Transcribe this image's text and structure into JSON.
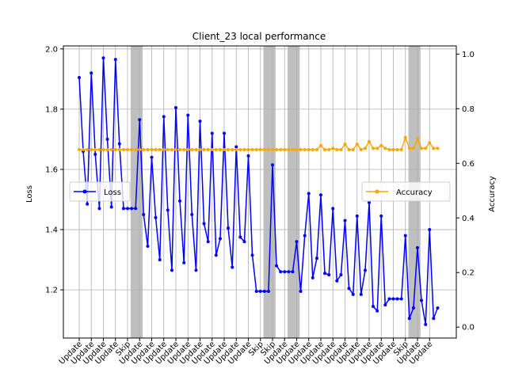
{
  "chart_data": {
    "type": "line",
    "title": "Client_23 local performance",
    "xlabel": "",
    "ylabel_left": "Loss",
    "ylabel_right": "Accuracy",
    "grid": true,
    "colors": {
      "loss": "#0000ff",
      "accuracy": "#ffa500",
      "skip_band": "#808080",
      "grid": "#b0b0b0"
    },
    "x_tick_labels": [
      "Update",
      "Update",
      "Update",
      "Update",
      "Skip",
      "Update",
      "Update",
      "Update",
      "Update",
      "Update",
      "Update",
      "Update",
      "Update",
      "Update",
      "Update",
      "Skip",
      "Skip",
      "Update",
      "Update",
      "Update",
      "Update",
      "Update",
      "Update",
      "Update",
      "Update",
      "Update",
      "Update",
      "Skip",
      "Update",
      "Update"
    ],
    "skip_rounds": [
      4,
      15,
      17,
      27
    ],
    "left_axis": {
      "ylim": [
        1.04,
        2.01
      ],
      "ticks": [
        1.2,
        1.4,
        1.6,
        1.8,
        2.0
      ],
      "tick_labels": [
        "1.2",
        "1.4",
        "1.6",
        "1.8",
        "2.0"
      ]
    },
    "right_axis": {
      "ylim": [
        -0.04,
        1.03
      ],
      "ticks": [
        0.0,
        0.2,
        0.4,
        0.6,
        0.8,
        1.0
      ],
      "tick_labels": [
        "0.0",
        "0.2",
        "0.4",
        "0.6",
        "0.8",
        "1.0"
      ]
    },
    "x": [
      0,
      0.33,
      0.67,
      1,
      1.33,
      1.67,
      2,
      2.33,
      2.67,
      3,
      3.33,
      3.67,
      4,
      4.33,
      4.67,
      5,
      5.33,
      5.67,
      6,
      6.33,
      6.67,
      7,
      7.33,
      7.67,
      8,
      8.33,
      8.67,
      9,
      9.33,
      9.67,
      10,
      10.33,
      10.67,
      11,
      11.33,
      11.67,
      12,
      12.33,
      12.67,
      13,
      13.33,
      13.67,
      14,
      14.33,
      14.67,
      15,
      15.33,
      15.67,
      16,
      16.33,
      16.67,
      17,
      17.33,
      17.67,
      18,
      18.33,
      18.67,
      19,
      19.33,
      19.67,
      20,
      20.33,
      20.67,
      21,
      21.33,
      21.67,
      22,
      22.33,
      22.67,
      23,
      23.33,
      23.67,
      24,
      24.33,
      24.67,
      25,
      25.33,
      25.67,
      26,
      26.33,
      26.67,
      27,
      27.33,
      27.67,
      28,
      28.33,
      28.67,
      29,
      29.33,
      29.67
    ],
    "series": [
      {
        "name": "Loss",
        "axis": "left",
        "values": [
          1.905,
          1.66,
          1.485,
          1.92,
          1.65,
          1.47,
          1.97,
          1.7,
          1.475,
          1.965,
          1.685,
          1.47,
          1.47,
          1.47,
          1.47,
          1.765,
          1.45,
          1.345,
          1.64,
          1.44,
          1.3,
          1.775,
          1.465,
          1.265,
          1.805,
          1.495,
          1.29,
          1.78,
          1.45,
          1.265,
          1.76,
          1.42,
          1.36,
          1.72,
          1.315,
          1.37,
          1.72,
          1.405,
          1.275,
          1.675,
          1.375,
          1.36,
          1.645,
          1.315,
          1.195,
          1.195,
          1.195,
          1.195,
          1.615,
          1.28,
          1.26,
          1.26,
          1.26,
          1.26,
          1.36,
          1.195,
          1.38,
          1.52,
          1.24,
          1.305,
          1.515,
          1.255,
          1.25,
          1.47,
          1.23,
          1.25,
          1.43,
          1.205,
          1.185,
          1.445,
          1.185,
          1.265,
          1.49,
          1.145,
          1.13,
          1.445,
          1.15,
          1.17,
          1.17,
          1.17,
          1.17,
          1.38,
          1.105,
          1.14,
          1.34,
          1.165,
          1.085,
          1.4,
          1.105,
          1.14
        ]
      },
      {
        "name": "Accuracy",
        "axis": "right",
        "values": [
          0.65,
          0.65,
          0.65,
          0.65,
          0.65,
          0.65,
          0.65,
          0.65,
          0.65,
          0.65,
          0.65,
          0.65,
          0.65,
          0.65,
          0.65,
          0.65,
          0.65,
          0.65,
          0.65,
          0.65,
          0.65,
          0.65,
          0.65,
          0.65,
          0.65,
          0.65,
          0.65,
          0.65,
          0.65,
          0.65,
          0.65,
          0.65,
          0.65,
          0.65,
          0.65,
          0.65,
          0.65,
          0.65,
          0.65,
          0.65,
          0.65,
          0.65,
          0.65,
          0.65,
          0.65,
          0.65,
          0.65,
          0.65,
          0.65,
          0.65,
          0.65,
          0.65,
          0.65,
          0.65,
          0.65,
          0.65,
          0.65,
          0.65,
          0.65,
          0.65,
          0.665,
          0.65,
          0.65,
          0.655,
          0.65,
          0.65,
          0.67,
          0.65,
          0.65,
          0.67,
          0.65,
          0.655,
          0.68,
          0.655,
          0.655,
          0.665,
          0.655,
          0.65,
          0.65,
          0.65,
          0.65,
          0.695,
          0.655,
          0.655,
          0.69,
          0.655,
          0.655,
          0.675,
          0.655,
          0.655
        ]
      }
    ]
  }
}
